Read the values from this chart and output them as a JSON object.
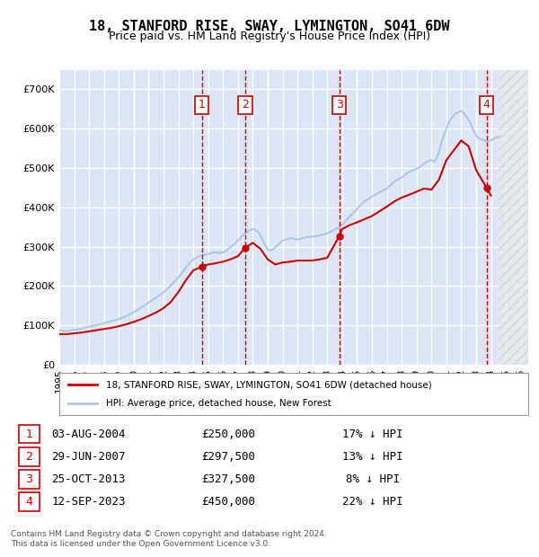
{
  "title": "18, STANFORD RISE, SWAY, LYMINGTON, SO41 6DW",
  "subtitle": "Price paid vs. HM Land Registry's House Price Index (HPI)",
  "ylabel": "",
  "xlim_start": 1995.0,
  "xlim_end": 2026.5,
  "ylim_min": 0,
  "ylim_max": 750000,
  "yticks": [
    0,
    100000,
    200000,
    300000,
    400000,
    500000,
    600000,
    700000
  ],
  "ytick_labels": [
    "£0",
    "£100K",
    "£200K",
    "£300K",
    "£400K",
    "£500K",
    "£600K",
    "£700K"
  ],
  "xticks": [
    1995,
    1996,
    1997,
    1998,
    1999,
    2000,
    2001,
    2002,
    2003,
    2004,
    2005,
    2006,
    2007,
    2008,
    2009,
    2010,
    2011,
    2012,
    2013,
    2014,
    2015,
    2016,
    2017,
    2018,
    2019,
    2020,
    2021,
    2022,
    2023,
    2024,
    2025,
    2026
  ],
  "background_color": "#ffffff",
  "plot_bg_color": "#dce6f5",
  "grid_color": "#ffffff",
  "hpi_color": "#aec6e8",
  "price_color": "#cc0000",
  "transaction_line_color": "#cc0000",
  "future_hatch_color": "#c0c0c0",
  "legend_label_price": "18, STANFORD RISE, SWAY, LYMINGTON, SO41 6DW (detached house)",
  "legend_label_hpi": "HPI: Average price, detached house, New Forest",
  "transactions": [
    {
      "num": 1,
      "date": "03-AUG-2004",
      "x": 2004.58,
      "price": 250000,
      "label": "17% ↓ HPI"
    },
    {
      "num": 2,
      "date": "29-JUN-2007",
      "x": 2007.49,
      "price": 297500,
      "label": "13% ↓ HPI"
    },
    {
      "num": 3,
      "date": "25-OCT-2013",
      "x": 2013.81,
      "price": 327500,
      "label": "8% ↓ HPI"
    },
    {
      "num": 4,
      "date": "12-SEP-2023",
      "x": 2023.7,
      "price": 450000,
      "label": "22% ↓ HPI"
    }
  ],
  "footer": "Contains HM Land Registry data © Crown copyright and database right 2024.\nThis data is licensed under the Open Government Licence v3.0.",
  "hpi_data_x": [
    1995.0,
    1995.1,
    1995.2,
    1995.3,
    1995.4,
    1995.5,
    1995.6,
    1995.7,
    1995.8,
    1995.9,
    1996.0,
    1996.1,
    1996.2,
    1996.3,
    1996.4,
    1996.5,
    1996.6,
    1996.7,
    1996.8,
    1996.9,
    1997.0,
    1997.2,
    1997.4,
    1997.6,
    1997.8,
    1998.0,
    1998.2,
    1998.4,
    1998.6,
    1998.8,
    1999.0,
    1999.2,
    1999.4,
    1999.6,
    1999.8,
    2000.0,
    2000.2,
    2000.4,
    2000.6,
    2000.8,
    2001.0,
    2001.2,
    2001.4,
    2001.6,
    2001.8,
    2002.0,
    2002.2,
    2002.4,
    2002.6,
    2002.8,
    2003.0,
    2003.2,
    2003.4,
    2003.6,
    2003.8,
    2004.0,
    2004.2,
    2004.4,
    2004.6,
    2004.8,
    2005.0,
    2005.2,
    2005.4,
    2005.6,
    2005.8,
    2006.0,
    2006.2,
    2006.4,
    2006.6,
    2006.8,
    2007.0,
    2007.2,
    2007.4,
    2007.6,
    2007.8,
    2008.0,
    2008.2,
    2008.4,
    2008.6,
    2008.8,
    2009.0,
    2009.2,
    2009.4,
    2009.6,
    2009.8,
    2010.0,
    2010.2,
    2010.4,
    2010.6,
    2010.8,
    2011.0,
    2011.2,
    2011.4,
    2011.6,
    2011.8,
    2012.0,
    2012.2,
    2012.4,
    2012.6,
    2012.8,
    2013.0,
    2013.2,
    2013.4,
    2013.6,
    2013.8,
    2014.0,
    2014.2,
    2014.4,
    2014.6,
    2014.8,
    2015.0,
    2015.2,
    2015.4,
    2015.6,
    2015.8,
    2016.0,
    2016.2,
    2016.4,
    2016.6,
    2016.8,
    2017.0,
    2017.2,
    2017.4,
    2017.6,
    2017.8,
    2018.0,
    2018.2,
    2018.4,
    2018.6,
    2018.8,
    2019.0,
    2019.2,
    2019.4,
    2019.6,
    2019.8,
    2020.0,
    2020.2,
    2020.4,
    2020.6,
    2020.8,
    2021.0,
    2021.2,
    2021.4,
    2021.6,
    2021.8,
    2022.0,
    2022.2,
    2022.4,
    2022.6,
    2022.8,
    2023.0,
    2023.2,
    2023.4,
    2023.6,
    2023.8,
    2024.0,
    2024.2,
    2024.4,
    2024.6
  ],
  "hpi_data_y": [
    88000,
    87500,
    87000,
    86500,
    86000,
    86500,
    87000,
    87500,
    88000,
    88500,
    89000,
    89500,
    90000,
    90500,
    91000,
    92000,
    93000,
    94000,
    95000,
    96000,
    97000,
    98500,
    100000,
    102000,
    104000,
    106000,
    108000,
    110000,
    112000,
    114000,
    116000,
    119000,
    122000,
    126000,
    130000,
    134000,
    138000,
    143000,
    148000,
    153000,
    158000,
    163000,
    168000,
    173000,
    178000,
    184000,
    191000,
    198000,
    206000,
    214000,
    222000,
    232000,
    242000,
    252000,
    260000,
    268000,
    272000,
    276000,
    278000,
    280000,
    282000,
    284000,
    286000,
    285000,
    284000,
    286000,
    290000,
    296000,
    302000,
    308000,
    316000,
    324000,
    332000,
    338000,
    342000,
    345000,
    342000,
    336000,
    322000,
    305000,
    292000,
    290000,
    295000,
    302000,
    308000,
    316000,
    318000,
    320000,
    322000,
    320000,
    318000,
    320000,
    322000,
    325000,
    325000,
    326000,
    327000,
    328000,
    330000,
    332000,
    334000,
    338000,
    342000,
    346000,
    350000,
    356000,
    364000,
    372000,
    380000,
    388000,
    396000,
    404000,
    412000,
    418000,
    422000,
    428000,
    432000,
    436000,
    440000,
    444000,
    448000,
    455000,
    462000,
    468000,
    472000,
    476000,
    482000,
    488000,
    492000,
    495000,
    498000,
    502000,
    508000,
    514000,
    518000,
    520000,
    516000,
    530000,
    555000,
    580000,
    600000,
    618000,
    630000,
    638000,
    642000,
    645000,
    638000,
    628000,
    615000,
    598000,
    582000,
    575000,
    572000,
    570000,
    568000,
    570000,
    575000,
    578000,
    580000
  ],
  "price_data_x": [
    1995.0,
    1995.5,
    1996.0,
    1996.5,
    1997.0,
    1997.5,
    1998.0,
    1998.5,
    1999.0,
    1999.5,
    2000.0,
    2000.5,
    2001.0,
    2001.5,
    2002.0,
    2002.5,
    2003.0,
    2003.5,
    2004.0,
    2004.58,
    2005.0,
    2005.5,
    2006.0,
    2006.5,
    2007.0,
    2007.49,
    2008.0,
    2008.5,
    2009.0,
    2009.5,
    2010.0,
    2010.5,
    2011.0,
    2011.5,
    2012.0,
    2012.5,
    2013.0,
    2013.81,
    2014.0,
    2014.5,
    2015.0,
    2015.5,
    2016.0,
    2016.5,
    2017.0,
    2017.5,
    2018.0,
    2018.5,
    2019.0,
    2019.5,
    2020.0,
    2020.5,
    2021.0,
    2021.5,
    2022.0,
    2022.5,
    2023.0,
    2023.7,
    2024.0
  ],
  "price_data_y": [
    78000,
    78000,
    80000,
    82000,
    85000,
    88000,
    91000,
    94000,
    98000,
    103000,
    109000,
    116000,
    124000,
    133000,
    144000,
    160000,
    185000,
    215000,
    240000,
    250000,
    255000,
    258000,
    262000,
    268000,
    276000,
    297500,
    310000,
    295000,
    268000,
    255000,
    260000,
    262000,
    265000,
    265000,
    265000,
    268000,
    272000,
    327500,
    345000,
    355000,
    362000,
    370000,
    378000,
    390000,
    402000,
    415000,
    425000,
    432000,
    440000,
    448000,
    445000,
    470000,
    520000,
    545000,
    570000,
    555000,
    495000,
    450000,
    430000
  ]
}
